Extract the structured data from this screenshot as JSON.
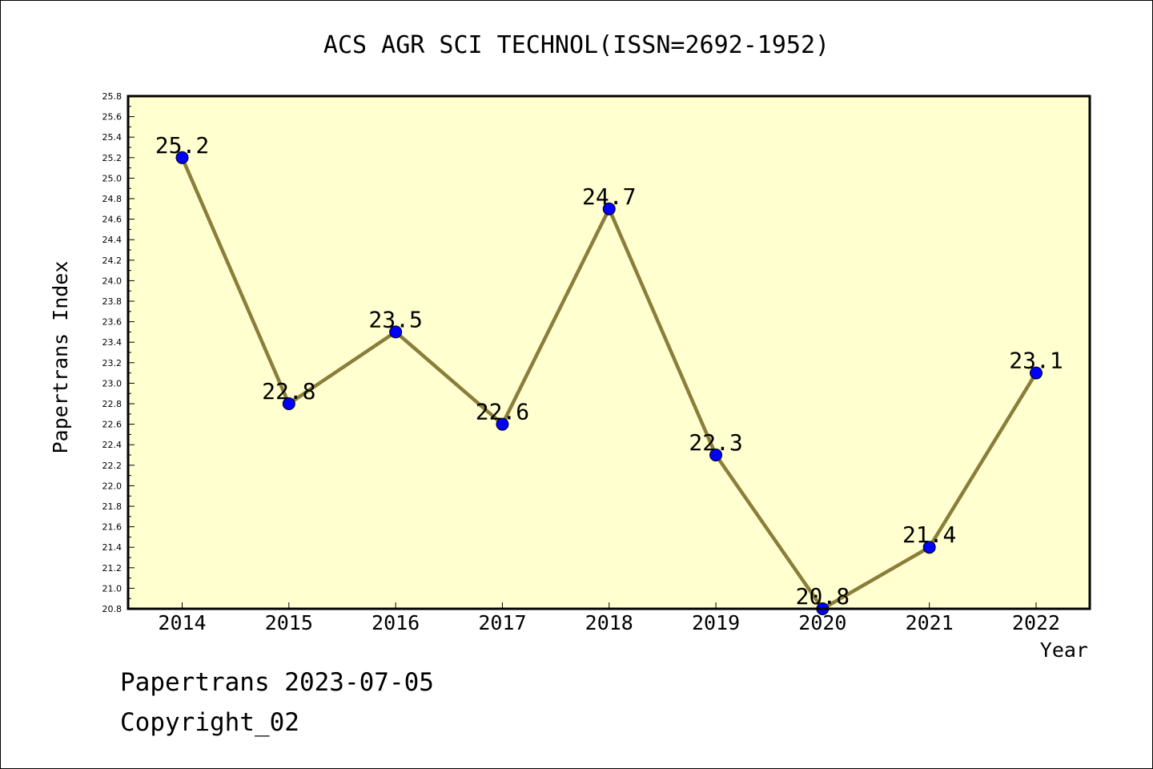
{
  "chart_data": {
    "type": "line",
    "title": "ACS AGR SCI TECHNOL(ISSN=2692-1952)",
    "xlabel": "Year",
    "ylabel": "Papertrans Index",
    "categories": [
      "2014",
      "2015",
      "2016",
      "2017",
      "2018",
      "2019",
      "2020",
      "2021",
      "2022"
    ],
    "series": [
      {
        "values": [
          25.2,
          22.8,
          23.5,
          22.6,
          24.7,
          22.3,
          20.8,
          21.4,
          23.1
        ]
      }
    ],
    "data_labels": [
      "25.2",
      "22.8",
      "23.5",
      "22.6",
      "24.7",
      "22.3",
      "20.8",
      "21.4",
      "23.1"
    ],
    "ylim": [
      20.8,
      25.8
    ],
    "yticks": [
      "20.8",
      "21.0",
      "21.2",
      "21.4",
      "21.6",
      "21.8",
      "22.0",
      "22.2",
      "22.4",
      "22.6",
      "22.8",
      "23.0",
      "23.2",
      "23.4",
      "23.6",
      "23.8",
      "24.0",
      "24.2",
      "24.4",
      "24.6",
      "24.8",
      "25.0",
      "25.2",
      "25.4",
      "25.6",
      "25.8"
    ],
    "grid": false,
    "colors": {
      "plot_background": "#ffffd0",
      "line": "#8b7d3a",
      "marker": "#0000ff"
    }
  },
  "footer": {
    "line1": "Papertrans 2023-07-05",
    "line2": "Copyright_02"
  }
}
